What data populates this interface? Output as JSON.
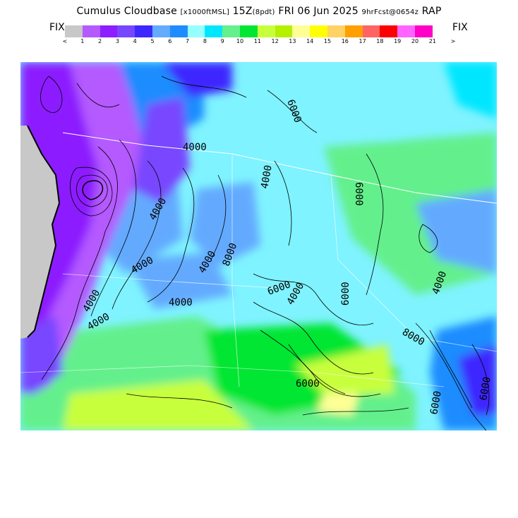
{
  "header": {
    "title": "Cumulus Cloudbase",
    "units": "[x1000ftMSL]",
    "valid_time": "15Z",
    "local_time": "(8pdt)",
    "date": "FRI 06 Jun 2025",
    "forecast_info": "9hrFcst@0654z",
    "model": "RAP"
  },
  "legend": {
    "left_label": "FIX",
    "right_label": "FIX",
    "below_marker": "<",
    "above_marker": ">",
    "ticks": [
      "1",
      "2",
      "3",
      "4",
      "5",
      "6",
      "7",
      "8",
      "9",
      "10",
      "11",
      "12",
      "13",
      "14",
      "15",
      "16",
      "17",
      "18",
      "19",
      "20",
      "21"
    ],
    "colors": [
      "#c8c8c8",
      "#b45aff",
      "#8c1eff",
      "#7846ff",
      "#3c28ff",
      "#64aaff",
      "#1e8cff",
      "#96ffff",
      "#00e6ff",
      "#64f08c",
      "#00e632",
      "#c8ff3c",
      "#b4f000",
      "#ffff96",
      "#ffff00",
      "#ffd264",
      "#ffa000",
      "#ff6464",
      "#ff0000",
      "#ff64ff",
      "#ff00c8"
    ]
  },
  "map": {
    "contour_labels": [
      "4000",
      "4000",
      "6000",
      "4000",
      "4000",
      "4000",
      "6000",
      "4000",
      "8000",
      "4000",
      "6000",
      "4000",
      "6000",
      "6000",
      "8000",
      "4000",
      "6000",
      "4000",
      "6000"
    ]
  }
}
